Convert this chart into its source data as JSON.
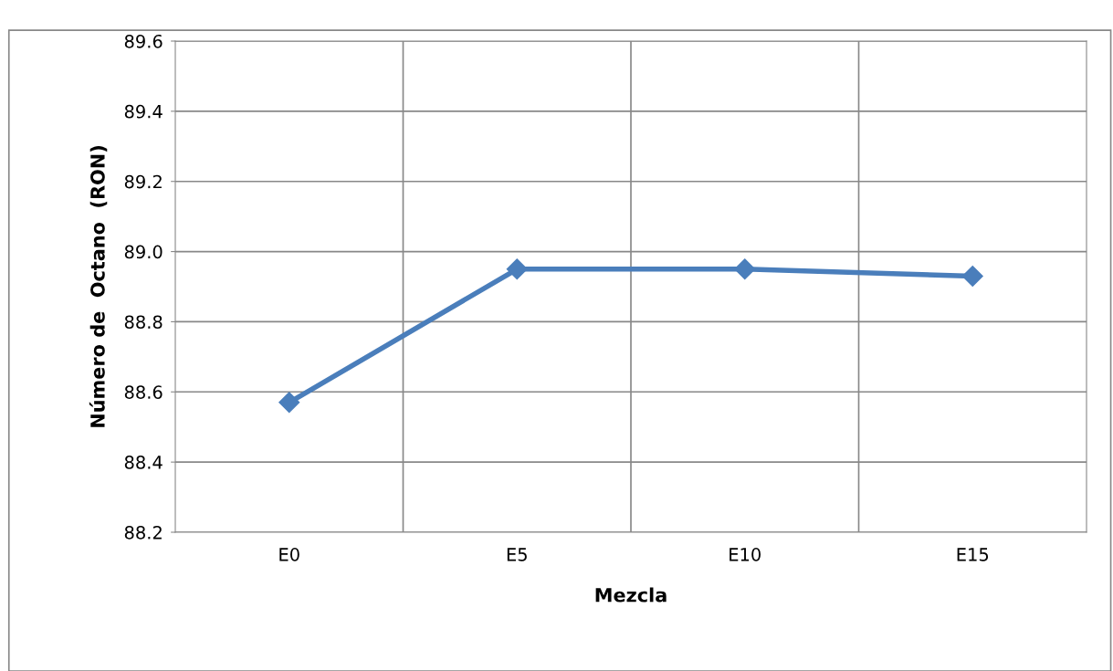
{
  "chart_data": {
    "type": "line",
    "xlabel": "Mezcla",
    "ylabel": "Número de  Octano  (RON)",
    "categories": [
      "E0",
      "E5",
      "E10",
      "E15"
    ],
    "series": [
      {
        "color": "#4a7ebb",
        "values": [
          88.57,
          88.95,
          88.95,
          88.93
        ]
      }
    ],
    "ylim": [
      88.2,
      89.6
    ],
    "yticks": [
      {
        "value": 88.2,
        "label": "88.2"
      },
      {
        "value": 88.4,
        "label": "88.4"
      },
      {
        "value": 88.6,
        "label": "88.6"
      },
      {
        "value": 88.8,
        "label": "88.8"
      },
      {
        "value": 89.0,
        "label": "89.0"
      },
      {
        "value": 89.2,
        "label": "89.2"
      },
      {
        "value": 89.4,
        "label": "89.4"
      },
      {
        "value": 89.6,
        "label": "89.6"
      }
    ],
    "grid": true,
    "marker": "diamond",
    "line_style": "solid"
  }
}
